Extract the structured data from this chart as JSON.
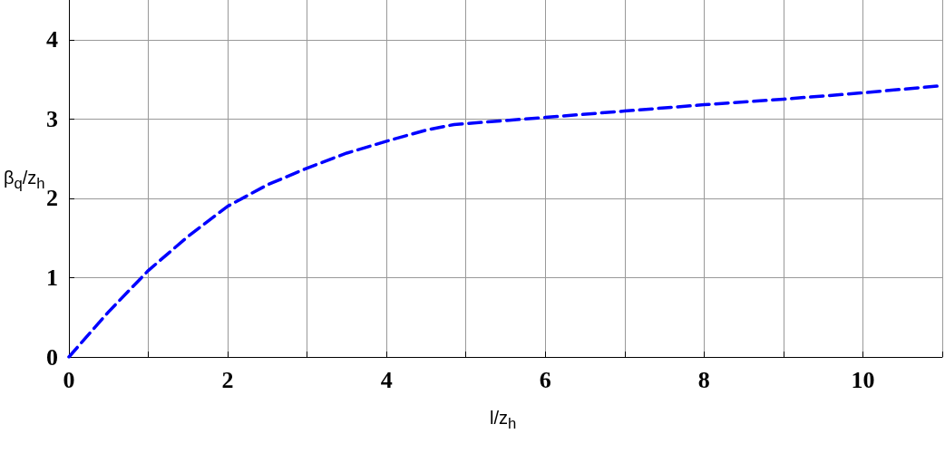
{
  "chart_data": {
    "type": "line",
    "xlabel": "l/z$_{h}$",
    "ylabel": "β$_{q}$/z$_{h}$",
    "x": [
      0,
      0.5,
      1,
      1.5,
      2,
      2.5,
      3,
      3.5,
      4,
      4.5,
      4.85,
      6,
      7,
      8,
      9,
      10,
      11
    ],
    "series": [
      {
        "color": "#0000ff",
        "values": [
          0,
          0.57,
          1.09,
          1.52,
          1.9,
          2.17,
          2.38,
          2.57,
          2.72,
          2.86,
          2.93,
          3.02,
          3.1,
          3.18,
          3.25,
          3.33,
          3.42
        ]
      }
    ],
    "xlim": [
      0,
      11
    ],
    "ylim": [
      0,
      4.5
    ],
    "xticks": [
      0,
      {
        "value": 1,
        "label": null
      },
      2,
      {
        "value": 3,
        "label": null
      },
      4,
      {
        "value": 5,
        "label": null
      },
      6,
      {
        "value": 7,
        "label": null
      },
      8,
      {
        "value": 9,
        "label": null
      },
      10,
      {
        "value": 11,
        "label": null
      }
    ],
    "yticks": [
      0,
      1,
      2,
      3,
      4
    ],
    "grid": true,
    "line_style": "dashed",
    "marker": "none"
  }
}
